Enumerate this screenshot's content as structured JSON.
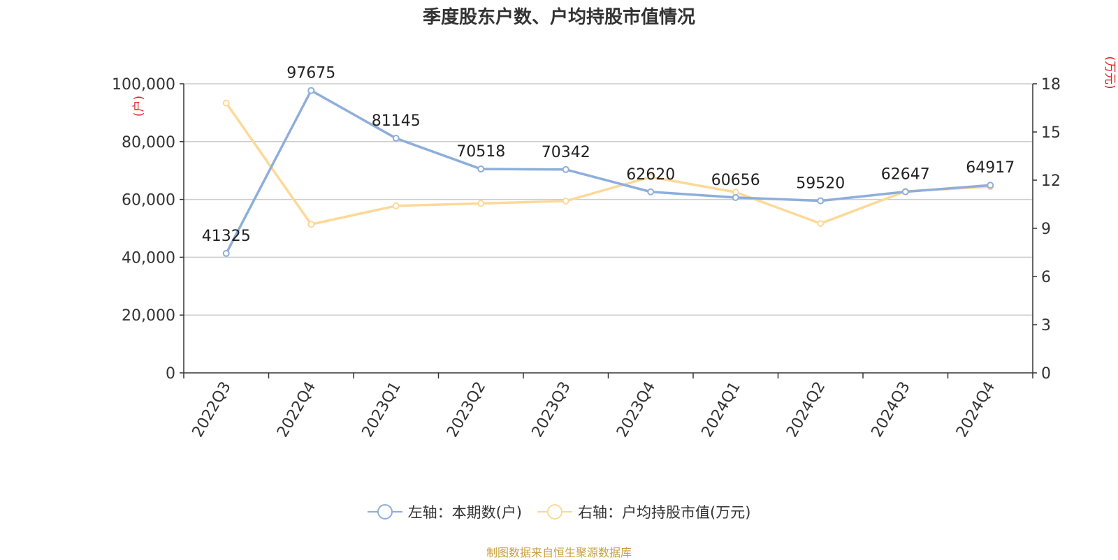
{
  "source_note": "制图数据来自恒生聚源数据库",
  "chart_data": {
    "type": "line",
    "title": "季度股东户数、户均持股市值情况",
    "categories": [
      "2022Q3",
      "2022Q4",
      "2023Q1",
      "2023Q2",
      "2023Q3",
      "2023Q4",
      "2024Q1",
      "2024Q2",
      "2024Q3",
      "2024Q4"
    ],
    "y_left": {
      "unit": "(户)",
      "range": [
        0,
        100000
      ],
      "ticks": [
        "0",
        "20,000",
        "40,000",
        "60,000",
        "80,000",
        "100,000"
      ]
    },
    "y_right": {
      "unit": "(万元)",
      "range": [
        0,
        18
      ],
      "ticks": [
        "0",
        "3",
        "6",
        "9",
        "12",
        "15",
        "18"
      ]
    },
    "grid": true,
    "legend_position": "bottom",
    "series": [
      {
        "name": "左轴：本期数(户)",
        "axis": "left",
        "color": "#8eaedb",
        "values": [
          41325,
          97675,
          81145,
          70518,
          70342,
          62620,
          60656,
          59520,
          62647,
          64917
        ],
        "labels": [
          "41325",
          "97675",
          "81145",
          "70518",
          "70342",
          "62620",
          "60656",
          "59520",
          "62647",
          "64917"
        ]
      },
      {
        "name": "右轴：户均持股市值(万元)",
        "axis": "right",
        "color": "#fcd998",
        "values": [
          16.8,
          9.25,
          10.4,
          10.55,
          10.7,
          12.2,
          11.25,
          9.3,
          11.3,
          11.6
        ]
      }
    ]
  }
}
